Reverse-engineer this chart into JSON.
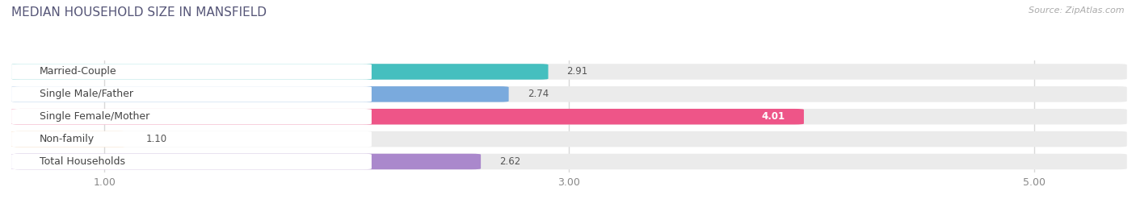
{
  "title": "MEDIAN HOUSEHOLD SIZE IN MANSFIELD",
  "source": "Source: ZipAtlas.com",
  "categories": [
    "Married-Couple",
    "Single Male/Father",
    "Single Female/Mother",
    "Non-family",
    "Total Households"
  ],
  "values": [
    2.91,
    2.74,
    4.01,
    1.1,
    2.62
  ],
  "bar_colors": [
    "#45bfbf",
    "#7aaadd",
    "#ee5588",
    "#f5c896",
    "#aa88cc"
  ],
  "background_color": "#ffffff",
  "bar_bg_color": "#ebebeb",
  "label_bg_color": "#ffffff",
  "xmin": 0.6,
  "xmax": 5.4,
  "xticks": [
    1.0,
    3.0,
    5.0
  ],
  "bar_height": 0.62,
  "title_fontsize": 11,
  "label_fontsize": 9,
  "value_fontsize": 8.5,
  "source_fontsize": 8,
  "title_color": "#555577",
  "label_color": "#444444",
  "value_color_outside": "#555555",
  "value_color_inside": "#ffffff",
  "grid_color": "#d8d8d8",
  "tick_color": "#888888"
}
